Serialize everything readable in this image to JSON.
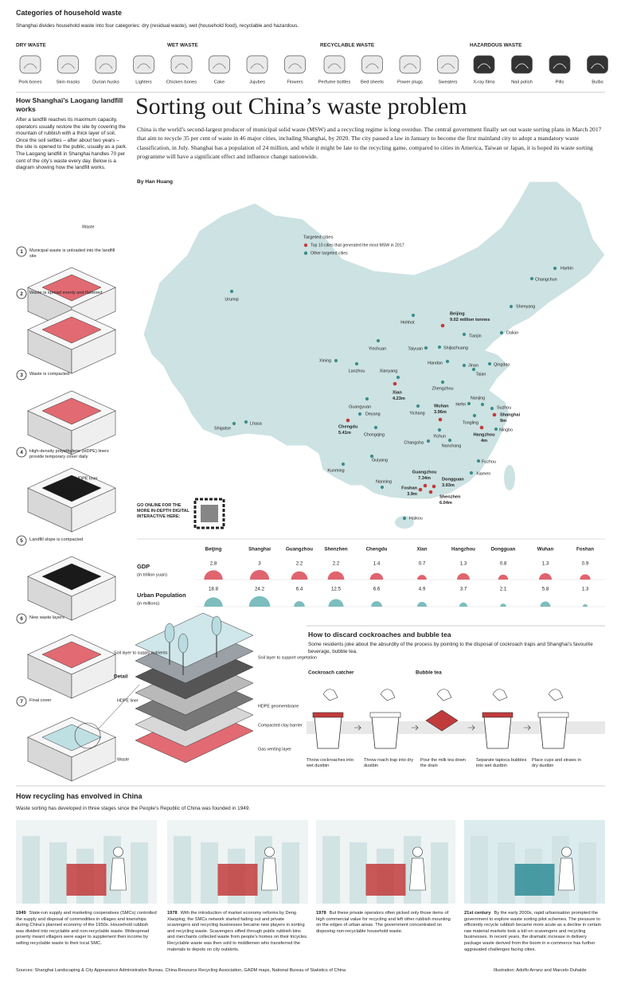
{
  "header": {
    "title": "Categories of household waste",
    "subtitle": "Shanghai divides household waste into four categories: dry (residual waste), wet (household food), recyclable and hazardous."
  },
  "categories": [
    {
      "name": "DRY WASTE",
      "items": [
        "Pork bones",
        "Skin masks",
        "Durian husks",
        "Lighters"
      ]
    },
    {
      "name": "WET WASTE",
      "items": [
        "Chicken bones",
        "Cake",
        "Jujubes",
        "Flowers"
      ]
    },
    {
      "name": "RECYCLABLE WASTE",
      "items": [
        "Perfume bottles",
        "Bed sheets",
        "Power plugs",
        "Sweaters"
      ]
    },
    {
      "name": "HAZARDOUS WASTE",
      "items": [
        "X-ray films",
        "Nail polish",
        "Pills",
        "Bulbs"
      ]
    }
  ],
  "landfill": {
    "title": "How Shanghai’s Laogang landfill works",
    "intro": "After a landfill reaches its maximum capacity, operators usually restore the site by covering the mountain of rubbish with a thick layer of soil. Once the soil settles – after about two years – the site is opened to the public, usually as a park. The Laogang landfill in Shanghai handles 70 per cent of the city’s waste every day. Below is a diagram showing how the landfill works.",
    "steps": [
      {
        "number": "1",
        "text": "Municipal waste is unloaded into the landfill site"
      },
      {
        "number": "2",
        "text": "Waste is spread evenly and flattened"
      },
      {
        "number": "3",
        "text": "Waste is compacted"
      },
      {
        "number": "4",
        "text": "High-density polyethylene (HDPE) liners provide temporary cover daily"
      },
      {
        "number": "5",
        "text": "Landfill slope is compacted"
      },
      {
        "number": "6",
        "text": "New waste layers"
      },
      {
        "number": "7",
        "text": "Final cover"
      }
    ],
    "waste_label": "Waste",
    "liner_label": "HDPE liner"
  },
  "article": {
    "title": "Sorting out China’s waste problem",
    "intro": "China is the world’s second-largest producer of municipal solid waste (MSW) and a recycling regime is long overdue. The central government finally set out waste sorting plans in March 2017 that aim to recycle 35 per cent of waste in 46 major cities, including Shanghai, by 2020. The city passed a law in January to become the first mainland city to adopt a mandatory waste classification, in July. Shanghai has a population of 24 million, and while it might be late to the recycling game, compared to cities in America, Taiwan or Japan, it is hoped its waste sorting programme will have a significant effect and influence change nationwide.",
    "byline": "By Han Huang"
  },
  "map": {
    "legend_title": "Targeted cities",
    "legend_top": "Top 10 cities that generated the most MSW in 2017",
    "legend_other": "Other targeted cities",
    "top_color": "#c23b3b",
    "other_color": "#3d8d8c",
    "top_cities": [
      {
        "name": "Beijing",
        "msw": "9.02 million tonnes"
      },
      {
        "name": "Shanghai",
        "msw": "9m"
      },
      {
        "name": "Guangzhou",
        "msw": "7.34m"
      },
      {
        "name": "Shenzhen",
        "msw": "6.04m"
      },
      {
        "name": "Chengdu",
        "msw": "5.41m"
      },
      {
        "name": "Xian",
        "msw": "4.23m"
      },
      {
        "name": "Hangzhou",
        "msw": "4m"
      },
      {
        "name": "Dongguan",
        "msw": "3.93m"
      },
      {
        "name": "Wuhan",
        "msw": "3.96m"
      },
      {
        "name": "Foshan",
        "msw": "3.9m"
      }
    ],
    "other_cities": [
      "Harbin",
      "Changchun",
      "Shenyang",
      "Dalian",
      "Urumqi",
      "Hohhot",
      "Tianjin",
      "Yinchuan",
      "Taiyuan",
      "Shijiazhuang",
      "Xining",
      "Lanzhou",
      "Handan",
      "Jinan",
      "Taian",
      "Qingdao",
      "Xianyang",
      "Zhengzhou",
      "Guangyuan",
      "Deyang",
      "Yichang",
      "Hefei",
      "Nanjing",
      "Suzhou",
      "Tongling",
      "Ningbo",
      "Shigatse",
      "Lhasa",
      "Chongqing",
      "Changsha",
      "Yichun",
      "Nanchang",
      "Guiyang",
      "Kunming",
      "Fuzhou",
      "Xiamen",
      "Nanning",
      "Haikou"
    ],
    "online_note": "GO ONLINE FOR THE MORE IN-DEPTH DIGITAL INTERACTIVE HERE:"
  },
  "chart_data": {
    "type": "semicircle",
    "categories": [
      "Beijing",
      "Shanghai",
      "Guangzhou",
      "Shenzhen",
      "Chengdu",
      "Xian",
      "Hangzhou",
      "Dongguan",
      "Wuhan",
      "Foshan"
    ],
    "series": [
      {
        "name": "GDP",
        "unit": "(in trillion yuan)",
        "color": "#e0646e",
        "values": [
          2.8,
          3,
          2.2,
          2.2,
          1.4,
          0.7,
          1.3,
          0.8,
          1.3,
          0.9
        ]
      },
      {
        "name": "Urban Population",
        "unit": "(in millions)",
        "color": "#7dbdbd",
        "values": [
          18.8,
          24.2,
          6.4,
          12.5,
          6.6,
          4.9,
          3.7,
          2.1,
          5.8,
          1.3
        ]
      }
    ]
  },
  "detail": {
    "title": "Detail",
    "left_labels": [
      "Soil layer to supply nutrients",
      "HDPE liner",
      "Waste"
    ],
    "right_labels": [
      "Soil layer to support vegetation",
      "HDPE geomembrane",
      "Compacted clay barrier",
      "Gas venting layer"
    ]
  },
  "disposal": {
    "title": "How to discard cockroaches and bubble tea",
    "intro": "Some residents joke about the absurdity of the process by pointing to the disposal of cockroach traps and Shanghai’s favourite beverage, bubble tea.",
    "groups": [
      "Cockroach catcher",
      "Bubble tea"
    ],
    "steps": [
      "Throw cockroaches into wet dustbin",
      "Throw roach trap into dry dustbin",
      "Pour the milk tea down the drain",
      "Separate tapioca bubbles into wet dustbin",
      "Place cups and straws in dry dustbin"
    ]
  },
  "recycling": {
    "title": "How recycling has envolved in China",
    "intro": "Waste sorting has developed in three stages since the People’s Republic of China was founded in 1949.",
    "stages": [
      {
        "era": "1949",
        "text": "State-run supply and marketing cooperatives (SMCs) controlled the supply and disposal of commodities in villages and townships during China’s planned economy of the 1950s. Household rubbish was divided into recyclable and non-recyclable waste. Widespread poverty meant villagers were eager to supplement their income by selling recyclable waste to their local SMC."
      },
      {
        "era": "1978",
        "text": "With the introduction of market economy reforms by Deng Xiaoping, the SMCs network started fading out and private scavengers and recycling businesses became new players in sorting and recycling waste. Scavengers sifted through public rubbish bins and merchants collected waste from people’s homes on their tricycles. Recyclable waste was then sold to middlemen who transferred the materials to depots on city outskirts."
      },
      {
        "era": "1978",
        "text": "But these private operators often picked only those items of high commercial value for recycling and left other rubbish mounting on the edges of urban areas. The government concentrated on disposing non-recyclable household waste."
      },
      {
        "era": "21st century",
        "text": "By the early 2000s, rapid urbanisation prompted the government to explore waste sorting pilot schemes. The pressure to efficiently recycle rubbish became more acute as a decline in certain raw material markets took a toll on scavengers and recycling businesses. In recent years, the dramatic increase in delivery package waste derived from the boom in e-commerce has further aggravated challenges facing cities."
      }
    ]
  },
  "footer": {
    "sources": "Sources: Shanghai Landscaping & City Appearance Administrative Bureau, China Resource Recycling Association, GADM maps, National Bureau of Statistics of China",
    "credits": "Illustration: Adolfo Arranz and Marcelo Duhalde"
  }
}
